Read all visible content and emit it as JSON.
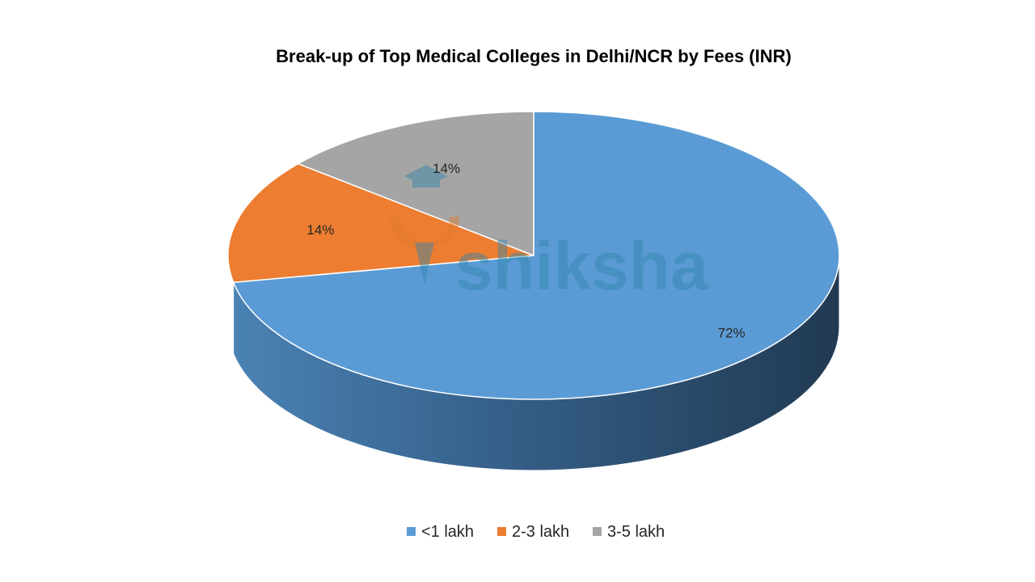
{
  "chart_data": {
    "type": "pie",
    "title": "Break-up of Top Medical Colleges in Delhi/NCR by Fees (INR)",
    "categories": [
      "<1 lakh",
      "2-3 lakh",
      "3-5 lakh"
    ],
    "values": [
      72,
      14,
      14
    ],
    "data_labels": [
      "72%",
      "14%",
      "14%"
    ],
    "colors": [
      "#5B9BD5",
      "#ED7D31",
      "#A5A5A5"
    ],
    "legend_position": "bottom",
    "style": "3d"
  },
  "watermark": {
    "text": "shiksha",
    "color": "#2E86AB"
  }
}
